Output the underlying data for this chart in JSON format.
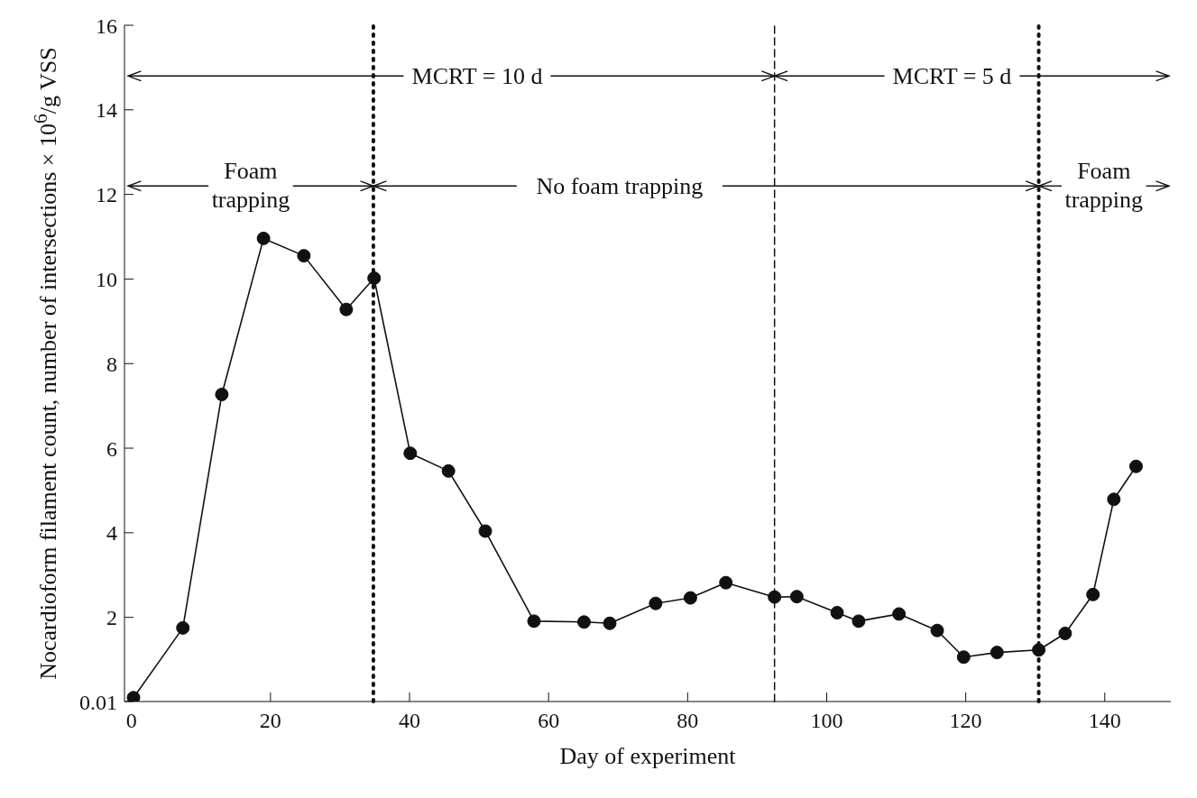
{
  "chart_data": {
    "type": "line",
    "xlabel": "Day of experiment",
    "ylabel": "Nocardioform filament count, number of intersections × 10$^{6}$/g VSS",
    "x": [
      0.3,
      7.4,
      13.0,
      19.0,
      24.8,
      30.9,
      34.9,
      40.1,
      45.6,
      50.9,
      57.9,
      65.1,
      68.8,
      75.4,
      80.4,
      85.5,
      92.5,
      95.7,
      101.5,
      104.6,
      110.4,
      115.9,
      119.7,
      124.5,
      130.5,
      134.3,
      138.3,
      141.3,
      144.5
    ],
    "series": [
      {
        "color": "#111111",
        "values": [
          0.1,
          1.75,
          7.27,
          10.96,
          10.55,
          9.28,
          10.02,
          5.88,
          5.46,
          4.04,
          1.91,
          1.89,
          1.86,
          2.33,
          2.46,
          2.82,
          2.48,
          2.49,
          2.11,
          1.91,
          2.08,
          1.69,
          1.06,
          1.17,
          1.23,
          1.62,
          2.54,
          4.79,
          5.57
        ]
      }
    ],
    "xlim": [
      -1,
      149.5
    ],
    "xticks": [
      0,
      20,
      40,
      60,
      80,
      100,
      120,
      140
    ],
    "ylim": [
      0.01,
      16
    ],
    "yticks": [
      0.01,
      2,
      4,
      6,
      8,
      10,
      12,
      14,
      16
    ],
    "ref_lines": [
      {
        "axis": "x",
        "value": 34.8,
        "line_style": "dotted"
      },
      {
        "axis": "x",
        "value": 92.5,
        "line_style": "dashed"
      },
      {
        "axis": "x",
        "value": 130.5,
        "line_style": "dotted"
      }
    ],
    "annotations": [
      {
        "text": "MCRT = 10 d",
        "x": 92.5,
        "y": 14.8
      },
      "MCRT = 5 d",
      {
        "text": "Foam trapping",
        "x": 34.8,
        "y": 12.2
      },
      {
        "text": "No foam trapping",
        "x": 130.5,
        "y": 12.2
      },
      {
        "text": "Foam trapping",
        "x": 130.5,
        "y": 12.2
      }
    ],
    "marker": "circle",
    "line_style": "solid",
    "grid": false
  }
}
